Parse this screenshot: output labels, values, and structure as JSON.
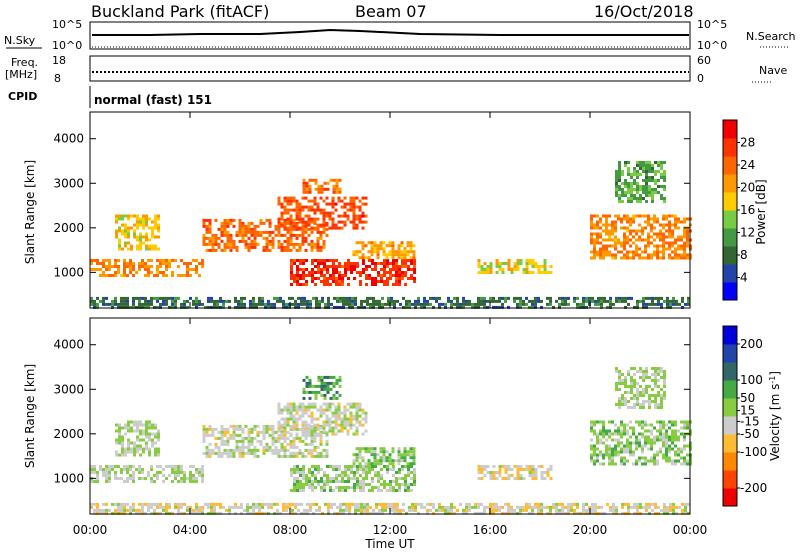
{
  "header": {
    "station": "Buckland Park (fitACF)",
    "beam": "Beam 07",
    "date": "16/Oct/2018"
  },
  "panels": {
    "nsky": {
      "label": "N.Sky",
      "right_label": "N.Search",
      "tick_top": "10^5",
      "tick_bottom": "10^0"
    },
    "freq": {
      "label_line1": "Freq.",
      "label_line2": "[MHz]",
      "right_label": "Nave",
      "tick_top": "18",
      "tick_bottom": "8",
      "right_tick_top": "60",
      "right_tick_bottom": "0"
    },
    "cpid": {
      "label": "CPID",
      "text": "normal (fast) 151"
    }
  },
  "colors": {
    "power": [
      "#0000ff",
      "#2244aa",
      "#336633",
      "#449944",
      "#77cc44",
      "#ffcc00",
      "#ff9900",
      "#ff6600",
      "#ff3300",
      "#ee0000"
    ],
    "velocity": [
      "#ee0000",
      "#ff4400",
      "#ff8800",
      "#ffbb33",
      "#cccccc",
      "#88cc44",
      "#44aa44",
      "#336666",
      "#2244aa",
      "#0000dd"
    ]
  },
  "chart_data": [
    {
      "type": "heatmap",
      "name": "power",
      "ylabel": "Slant Range [km]",
      "y_ticks": [
        "1000",
        "2000",
        "3000",
        "4000"
      ],
      "y_tick_values": [
        1000,
        2000,
        3000,
        4000
      ],
      "ylim": [
        200,
        4600
      ],
      "xlim": [
        0,
        24
      ],
      "colorbar": {
        "label": "Power [dB]",
        "ticks": [
          "4",
          "8",
          "12",
          "16",
          "20",
          "24",
          "28"
        ],
        "tick_values": [
          4,
          8,
          12,
          16,
          20,
          24,
          28
        ],
        "range": [
          0,
          32
        ]
      },
      "echo_regions": [
        {
          "t": [
            0,
            4.5
          ],
          "r": [
            900,
            1300
          ],
          "level": 22
        },
        {
          "t": [
            1.0,
            2.8
          ],
          "r": [
            1500,
            2300
          ],
          "level": 18
        },
        {
          "t": [
            4.5,
            9.5
          ],
          "r": [
            1500,
            2200
          ],
          "level": 24
        },
        {
          "t": [
            7.5,
            11.0
          ],
          "r": [
            2000,
            2700
          ],
          "level": 26
        },
        {
          "t": [
            8.5,
            10.0
          ],
          "r": [
            2800,
            3100
          ],
          "level": 24
        },
        {
          "t": [
            8.0,
            13.0
          ],
          "r": [
            700,
            1300
          ],
          "level": 28
        },
        {
          "t": [
            10.5,
            13.0
          ],
          "r": [
            1300,
            1700
          ],
          "level": 20
        },
        {
          "t": [
            15.5,
            18.5
          ],
          "r": [
            1000,
            1300
          ],
          "level": 18
        },
        {
          "t": [
            20.0,
            24.0
          ],
          "r": [
            1300,
            2300
          ],
          "level": 22
        },
        {
          "t": [
            21.0,
            23.0
          ],
          "r": [
            2600,
            3500
          ],
          "level": 12
        },
        {
          "t": [
            0,
            24.0
          ],
          "r": [
            200,
            450
          ],
          "level": 8
        }
      ]
    },
    {
      "type": "heatmap",
      "name": "velocity",
      "ylabel": "Slant Range [km]",
      "xlabel": "Time UT",
      "x_ticks": [
        "00:00",
        "04:00",
        "08:00",
        "12:00",
        "16:00",
        "20:00",
        "00:00"
      ],
      "x_tick_values": [
        0,
        4,
        8,
        12,
        16,
        20,
        24
      ],
      "y_ticks": [
        "1000",
        "2000",
        "3000",
        "4000"
      ],
      "y_tick_values": [
        1000,
        2000,
        3000,
        4000
      ],
      "ylim": [
        200,
        4600
      ],
      "xlim": [
        0,
        24
      ],
      "colorbar": {
        "label": "Velocity [m s^-1]",
        "ticks": [
          "-200",
          "-100",
          "-50",
          "-15",
          "15",
          "50",
          "100",
          "200"
        ],
        "tick_values": [
          -200,
          -100,
          -50,
          -15,
          15,
          50,
          100,
          200
        ],
        "range": [
          -250,
          250
        ]
      },
      "echo_regions": [
        {
          "t": [
            0,
            4.5
          ],
          "r": [
            900,
            1300
          ],
          "level": 0
        },
        {
          "t": [
            1.0,
            2.8
          ],
          "r": [
            1500,
            2300
          ],
          "level": 0
        },
        {
          "t": [
            4.5,
            9.5
          ],
          "r": [
            1500,
            2200
          ],
          "level": -15
        },
        {
          "t": [
            7.5,
            11.0
          ],
          "r": [
            2000,
            2700
          ],
          "level": -20
        },
        {
          "t": [
            8.5,
            10.0
          ],
          "r": [
            2800,
            3300
          ],
          "level": 80
        },
        {
          "t": [
            8.0,
            13.0
          ],
          "r": [
            700,
            1300
          ],
          "level": 20
        },
        {
          "t": [
            10.5,
            13.0
          ],
          "r": [
            1300,
            1700
          ],
          "level": 30
        },
        {
          "t": [
            15.5,
            18.5
          ],
          "r": [
            1000,
            1300
          ],
          "level": -40
        },
        {
          "t": [
            20.0,
            24.0
          ],
          "r": [
            1300,
            2300
          ],
          "level": 25
        },
        {
          "t": [
            21.0,
            23.0
          ],
          "r": [
            2600,
            3500
          ],
          "level": 5
        },
        {
          "t": [
            0,
            24.0
          ],
          "r": [
            200,
            450
          ],
          "level": -30
        }
      ]
    }
  ]
}
